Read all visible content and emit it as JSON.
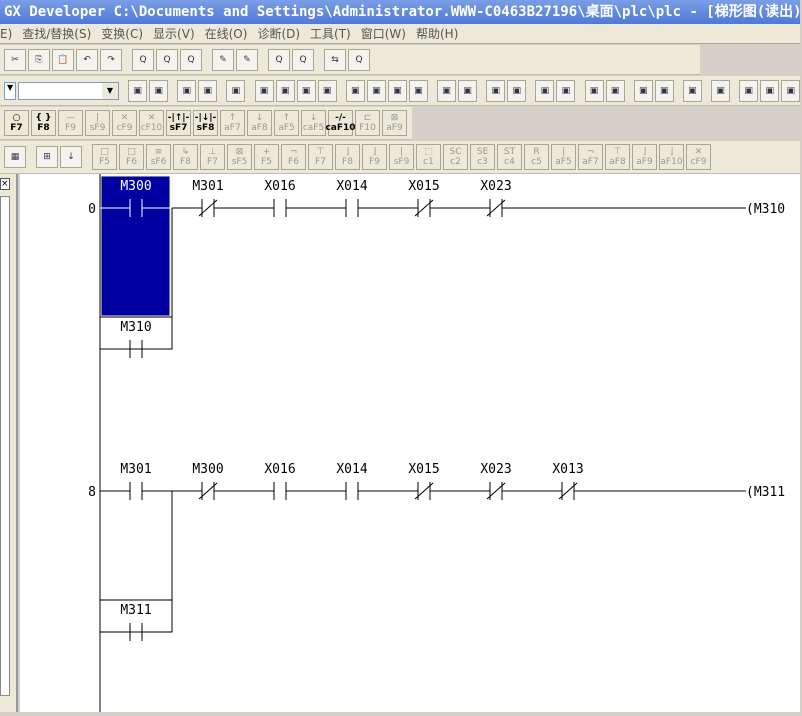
{
  "window": {
    "title": "GX Developer C:\\Documents and Settings\\Administrator.WWW-C0463B27196\\桌面\\plc\\plc - [梯形图(读出)"
  },
  "menu": [
    "E)",
    "查找/替换(S)",
    "变换(C)",
    "显示(V)",
    "在线(O)",
    "诊断(D)",
    "工具(T)",
    "窗口(W)",
    "帮助(H)"
  ],
  "toolbar1": [
    "cut",
    "copy",
    "paste",
    "undo",
    "redo",
    "find",
    "find2",
    "find3",
    "write",
    "read",
    "monitor",
    "monitor2",
    "transfer",
    "verify"
  ],
  "toolbar2_count": 28,
  "fkeys1": [
    [
      "○",
      "F7",
      1
    ],
    [
      "{ }",
      "F8",
      1
    ],
    [
      "—",
      "F9",
      0
    ],
    [
      "|",
      "sF9",
      0
    ],
    [
      "✕",
      "cF9",
      0
    ],
    [
      "✕",
      "cF10",
      0
    ],
    [
      "-|↑|-",
      "sF7",
      1
    ],
    [
      "-|↓|-",
      "sF8",
      1
    ],
    [
      "↑",
      "aF7",
      0
    ],
    [
      "↓",
      "aF8",
      0
    ],
    [
      "↑",
      "aF5",
      0
    ],
    [
      "↓",
      "caF5",
      0
    ],
    [
      "-/-",
      "caF10",
      1
    ],
    [
      "⊏",
      "F10",
      0
    ],
    [
      "⊠",
      "aF9",
      0
    ]
  ],
  "fkeys2": [
    [
      "□",
      "F5"
    ],
    [
      "□",
      "F6"
    ],
    [
      "≡",
      "sF6"
    ],
    [
      "↳",
      "F8"
    ],
    [
      "⊥",
      "F7"
    ],
    [
      "⊠",
      "sF5"
    ],
    [
      "+",
      "F5"
    ],
    [
      "¬",
      "F6"
    ],
    [
      "⊤",
      "F7"
    ],
    [
      "⌋",
      "F8"
    ],
    [
      "⌋",
      "F9"
    ],
    [
      "|",
      "sF9"
    ],
    [
      "⬚",
      "c1"
    ],
    [
      "SC",
      "c2"
    ],
    [
      "SE",
      "c3"
    ],
    [
      "ST",
      "c4"
    ],
    [
      "R",
      "c5"
    ],
    [
      "|",
      "aF5"
    ],
    [
      "¬",
      "aF7"
    ],
    [
      "⊤",
      "aF8"
    ],
    [
      "⌋",
      "aF9"
    ],
    [
      "⌋",
      "aF10"
    ],
    [
      "✕",
      "cF9"
    ]
  ],
  "ladder": {
    "selection_color": "#0000a0",
    "rungs": [
      {
        "step": "0",
        "contacts": [
          {
            "dev": "M300",
            "type": "NO"
          },
          {
            "dev": "M301",
            "type": "NC"
          },
          {
            "dev": "X016",
            "type": "NO"
          },
          {
            "dev": "X014",
            "type": "NO"
          },
          {
            "dev": "X015",
            "type": "NC"
          },
          {
            "dev": "X023",
            "type": "NC"
          }
        ],
        "branch": {
          "dev": "M310",
          "type": "NO"
        },
        "coil": "(M310"
      },
      {
        "step": "8",
        "contacts": [
          {
            "dev": "M301",
            "type": "NO"
          },
          {
            "dev": "M300",
            "type": "NC"
          },
          {
            "dev": "X016",
            "type": "NO"
          },
          {
            "dev": "X014",
            "type": "NO"
          },
          {
            "dev": "X015",
            "type": "NC"
          },
          {
            "dev": "X023",
            "type": "NC"
          },
          {
            "dev": "X013",
            "type": "NC"
          }
        ],
        "branch": {
          "dev": "M311",
          "type": "NO"
        },
        "coil": "(M311"
      }
    ]
  }
}
